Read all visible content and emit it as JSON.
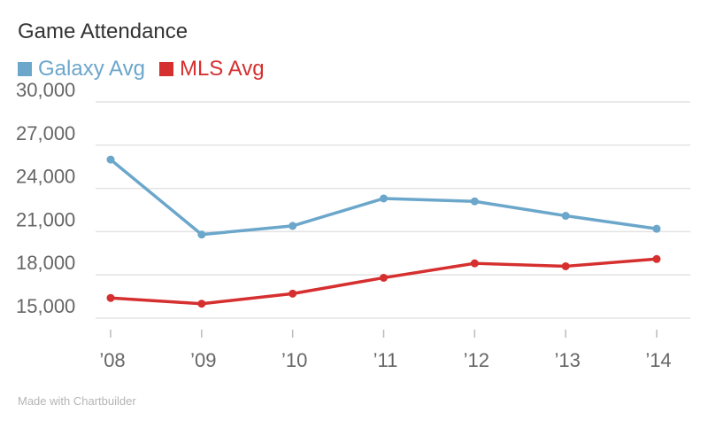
{
  "chart_data": {
    "type": "line",
    "title": "Game Attendance",
    "categories": [
      "’08",
      "’09",
      "’10",
      "’11",
      "’12",
      "’13",
      "’14"
    ],
    "series": [
      {
        "name": "Galaxy Avg",
        "color": "#6ba6cb",
        "values": [
          26000,
          20800,
          21400,
          23300,
          23100,
          22100,
          21200
        ]
      },
      {
        "name": "MLS Avg",
        "color": "#d62f2f",
        "values": [
          16400,
          16000,
          16700,
          17800,
          18800,
          18600,
          19100
        ]
      }
    ],
    "y_ticks": [
      "30,000",
      "27,000",
      "24,000",
      "21,000",
      "18,000",
      "15,000"
    ],
    "ylim": [
      15000,
      30000
    ],
    "grid": true,
    "legend_position": "top-left"
  },
  "footer": {
    "credit": "Made with Chartbuilder"
  }
}
